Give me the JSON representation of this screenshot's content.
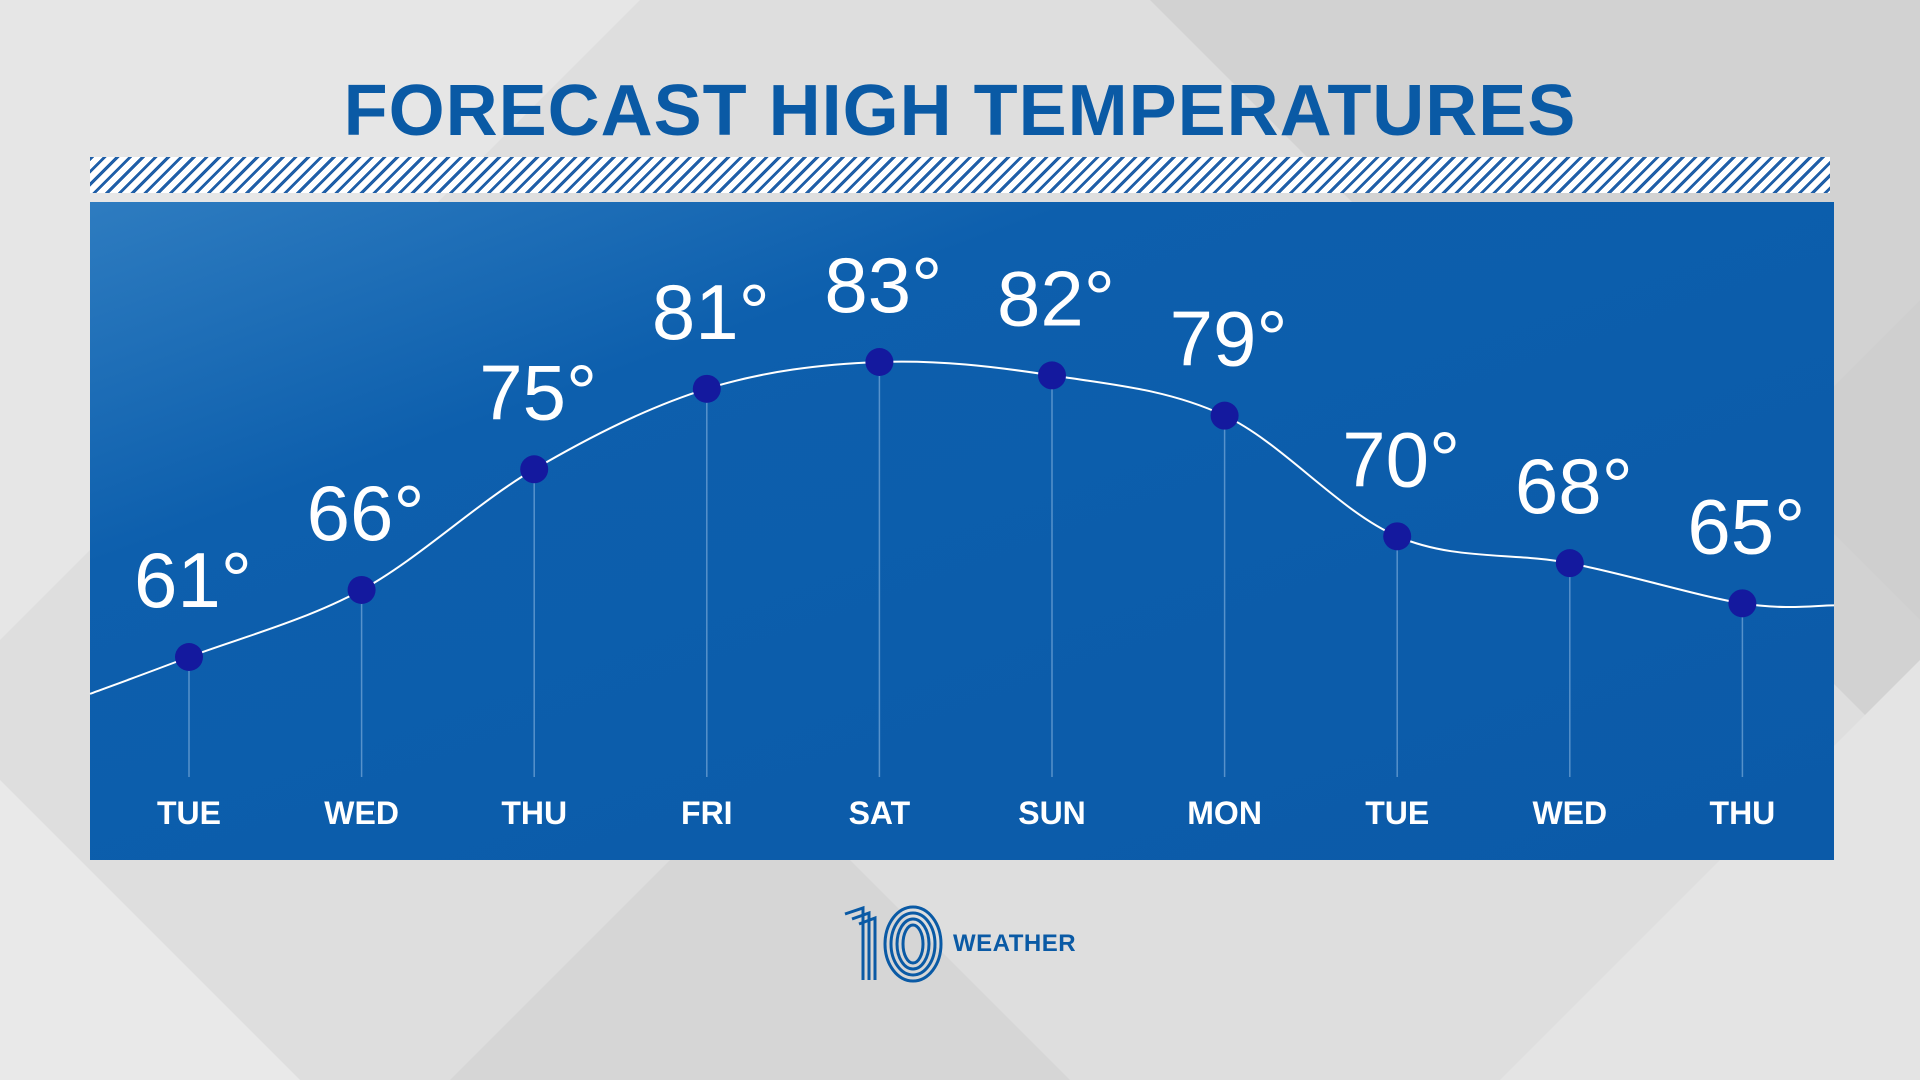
{
  "chart_data": {
    "type": "line",
    "title": "FORECAST HIGH TEMPERATURES",
    "categories": [
      "TUE",
      "WED",
      "THU",
      "FRI",
      "SAT",
      "SUN",
      "MON",
      "TUE",
      "WED",
      "THU"
    ],
    "values": [
      61,
      66,
      75,
      81,
      83,
      82,
      79,
      70,
      68,
      65
    ],
    "value_suffix": "°",
    "ylim": [
      50,
      90
    ],
    "grid": false,
    "colors": {
      "panel": "#0b5aa8",
      "title": "#0a5aa5",
      "line": "#ffffff",
      "marker": "#14199e"
    }
  },
  "brand": {
    "number": "10",
    "word": "WEATHER"
  }
}
